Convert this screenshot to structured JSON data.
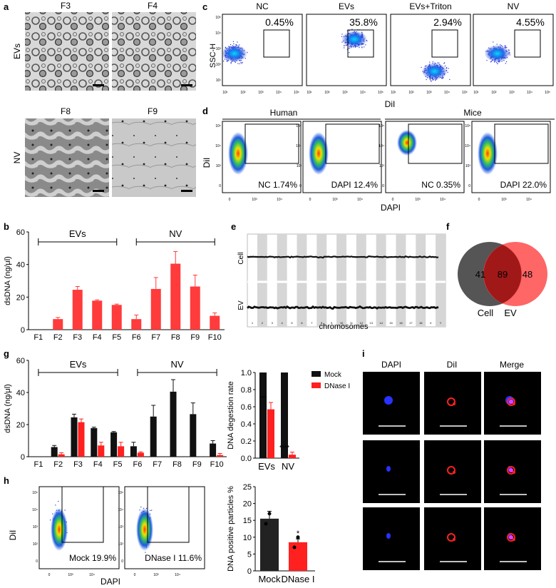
{
  "panel_letters": {
    "a": "a",
    "b": "b",
    "c": "c",
    "d": "d",
    "e": "e",
    "f": "f",
    "g": "g",
    "h": "h",
    "i": "i"
  },
  "panel_a": {
    "row_labels": [
      "EVs",
      "NV"
    ],
    "images": [
      "F3",
      "F4",
      "F8",
      "F9"
    ]
  },
  "panel_c": {
    "samples": [
      "NC",
      "EVs",
      "EVs+Triton",
      "NV"
    ],
    "percents": [
      "0.45%",
      "35.8%",
      "2.94%",
      "4.55%"
    ],
    "ylabel": "SSC-H",
    "xlabel": "DiI",
    "ticks": [
      "10¹",
      "10²",
      "10³",
      "10⁴",
      "10⁵"
    ],
    "yticks": [
      "10⁵",
      "10⁴",
      "10³",
      "10²",
      "10¹"
    ]
  },
  "panel_d": {
    "groups": [
      "Human",
      "Mice"
    ],
    "labels": [
      "NC 1.74%",
      "DAPI 12.4%",
      "NC 0.35%",
      "DAPI 22.0%"
    ],
    "ylabel": "DiI",
    "xlabel": "DAPI",
    "xticks": [
      "0",
      "10³",
      "10⁴"
    ],
    "yticks": [
      "10⁵",
      "10⁴",
      "10³",
      "0"
    ]
  },
  "panel_e": {
    "row_labels": [
      "Cell",
      "EV"
    ],
    "xlabel": "chromosomes",
    "chromosomes": [
      "1",
      "2",
      "3",
      "4",
      "5",
      "6",
      "7",
      "8",
      "9",
      "10",
      "11",
      "12",
      "13",
      "14",
      "15",
      "16",
      "17",
      "18",
      "X",
      "Y"
    ]
  },
  "panel_f": {
    "left_only": "41",
    "overlap": "89",
    "right_only": "48",
    "left_label": "Cell",
    "right_label": "EV"
  },
  "panel_h": {
    "labels": [
      "Mock 19.9%",
      "DNase I 11.6%"
    ],
    "ylabel": "DiI",
    "xlabel": "DAPI",
    "xticks": [
      "0",
      "10³",
      "10⁴"
    ],
    "yticks": [
      "10⁵",
      "10⁴",
      "10³",
      "10²",
      "0"
    ]
  },
  "panel_i": {
    "columns": [
      "DAPI",
      "DiI",
      "Merge"
    ]
  },
  "chart_data": [
    {
      "id": "b",
      "type": "bar",
      "ylabel": "dsDNA (ng/μl)",
      "ylim": [
        0,
        60
      ],
      "yticks": [
        "0",
        "20",
        "40",
        "60"
      ],
      "categories": [
        "F1",
        "F2",
        "F3",
        "F4",
        "F5",
        "F6",
        "F7",
        "F8",
        "F9",
        "F10"
      ],
      "values": [
        0,
        6.5,
        24.5,
        17.8,
        15.2,
        6.5,
        25,
        40.5,
        26.5,
        8.5
      ],
      "errors": [
        0,
        1,
        2,
        0.5,
        0.5,
        2.5,
        7,
        7.5,
        7,
        1.8
      ],
      "brackets": [
        {
          "label": "EVs",
          "from": "F1",
          "to": "F5"
        },
        {
          "label": "NV",
          "from": "F6",
          "to": "F10"
        }
      ],
      "color": "#ff3b3b"
    },
    {
      "id": "g",
      "type": "bar",
      "ylabel": "dsDNA (ng/μl)",
      "ylim": [
        0,
        60
      ],
      "yticks": [
        "0",
        "20",
        "40",
        "60"
      ],
      "categories": [
        "F1",
        "F2",
        "F3",
        "F4",
        "F5",
        "F6",
        "F7",
        "F8",
        "F9",
        "F10"
      ],
      "series": [
        {
          "name": "Mock",
          "values": [
            0,
            6,
            24.5,
            17.8,
            15.2,
            6.5,
            25,
            40.5,
            26.5,
            8.2
          ],
          "errors": [
            0,
            1,
            2,
            0.6,
            0.5,
            2.5,
            7,
            7.5,
            7,
            1.8
          ],
          "color": "#111111"
        },
        {
          "name": "DNase I",
          "values": [
            0,
            1.5,
            21.5,
            7,
            6.5,
            2.5,
            0,
            0,
            0,
            1
          ],
          "errors": [
            0,
            1,
            2,
            2,
            2.5,
            0.5,
            0,
            0,
            0,
            1
          ],
          "color": "#ff2020"
        }
      ],
      "brackets": [
        {
          "label": "EVs",
          "from": "F1",
          "to": "F5"
        },
        {
          "label": "NV",
          "from": "F6",
          "to": "F10"
        }
      ]
    },
    {
      "id": "g2",
      "type": "bar",
      "ylabel": "DNA degestion rate",
      "ylim": [
        0,
        1.0
      ],
      "yticks": [
        "0.0",
        "0.2",
        "0.4",
        "0.6",
        "0.8",
        "1.0"
      ],
      "categories": [
        "EVs",
        "NV"
      ],
      "series": [
        {
          "name": "Mock",
          "values": [
            1.0,
            1.0
          ],
          "errors": [
            0,
            0
          ],
          "color": "#111111"
        },
        {
          "name": "DNase I",
          "values": [
            0.57,
            0.04
          ],
          "errors": [
            0.08,
            0.03
          ],
          "color": "#ff2020"
        }
      ],
      "significance": [
        "***",
        "****"
      ],
      "legend": [
        "Mock",
        "DNase I"
      ]
    },
    {
      "id": "h2",
      "type": "bar",
      "ylabel": "DNA positive particles %",
      "ylim": [
        0,
        25
      ],
      "yticks": [
        "0",
        "5",
        "10",
        "15",
        "20",
        "25"
      ],
      "categories": [
        "Mock",
        "DNase I"
      ],
      "values": [
        15.5,
        8.5
      ],
      "errors": [
        2.2,
        1.0
      ],
      "colors": [
        "#222222",
        "#ff2020"
      ],
      "significance": [
        "",
        "*"
      ]
    }
  ]
}
